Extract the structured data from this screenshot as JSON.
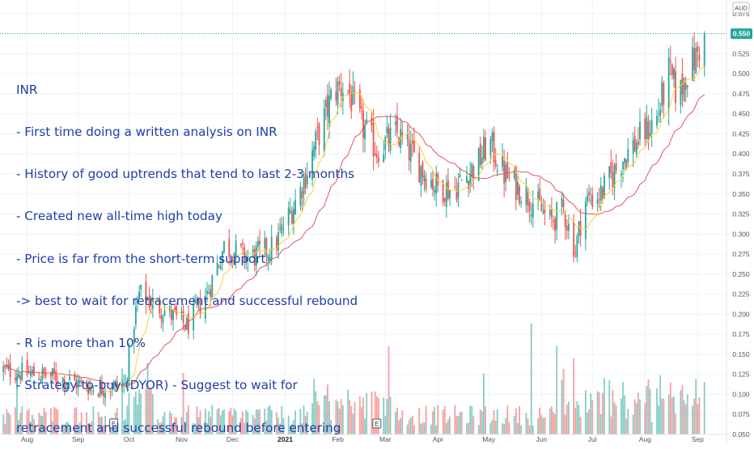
{
  "currency_badge": "AUD",
  "last_price_label": "0.550",
  "earnings_marker": "E",
  "annotation": {
    "lines": [
      "INR",
      "- First time doing a written analysis on INR",
      "- History of good uptrends that tend to last 2-3 months",
      "- Created new all-time high today",
      "- Price is far from the short-term support",
      "-> best to wait for retracement and successful rebound",
      "- R is more than 10%",
      "- Strategy-to-buy (DYOR) - Suggest to wait for",
      "retracement and successful rebound before entering"
    ]
  },
  "colors": {
    "up": "#26a69a",
    "down": "#ef5350",
    "ma_fast": "#f5d33a",
    "ma_slow": "#e05560",
    "annotation_text": "#1e3fa8",
    "price_label_bg": "#26a69a"
  },
  "chart_data": {
    "type": "candlestick",
    "title": "",
    "currency": "AUD",
    "ylim": [
      0.05,
      0.59
    ],
    "yticks": [
      0.575,
      0.55,
      0.525,
      0.5,
      0.475,
      0.45,
      0.425,
      0.4,
      0.375,
      0.35,
      0.325,
      0.3,
      0.275,
      0.25,
      0.225,
      0.2,
      0.175,
      0.15,
      0.125,
      0.1,
      0.075,
      0.05
    ],
    "ytick_labels": [
      "0.575",
      "",
      "0.525",
      "0.500",
      "0.475",
      "0.450",
      "0.425",
      "0.400",
      "0.375",
      "0.350",
      "0.325",
      "0.300",
      "0.275",
      "0.250",
      "0.225",
      "0.200",
      "0.175",
      "0.150",
      "0.125",
      "0.100",
      "0.075",
      "0.050"
    ],
    "x_labels": [
      {
        "label": "Aug",
        "day": 14,
        "bold": false
      },
      {
        "label": "Sep",
        "day": 44,
        "bold": false
      },
      {
        "label": "Oct",
        "day": 74,
        "bold": false
      },
      {
        "label": "Nov",
        "day": 105,
        "bold": false
      },
      {
        "label": "Dec",
        "day": 135,
        "bold": false
      },
      {
        "label": "2021",
        "day": 166,
        "bold": true
      },
      {
        "label": "Feb",
        "day": 197,
        "bold": false
      },
      {
        "label": "Mar",
        "day": 225,
        "bold": false
      },
      {
        "label": "Apr",
        "day": 256,
        "bold": false
      },
      {
        "label": "May",
        "day": 286,
        "bold": false
      },
      {
        "label": "Jun",
        "day": 317,
        "bold": false
      },
      {
        "label": "Jul",
        "day": 347,
        "bold": false
      },
      {
        "label": "Aug",
        "day": 378,
        "bold": false
      },
      {
        "label": "Sep",
        "day": 409,
        "bold": false
      }
    ],
    "x_range_days": [
      -2,
      426
    ],
    "earnings_days": [
      65,
      220
    ],
    "last_price": 0.55,
    "price_keypoints": [
      [
        0,
        0.13
      ],
      [
        30,
        0.122
      ],
      [
        55,
        0.107
      ],
      [
        72,
        0.112
      ],
      [
        76,
        0.18
      ],
      [
        80,
        0.225
      ],
      [
        95,
        0.205
      ],
      [
        108,
        0.185
      ],
      [
        120,
        0.225
      ],
      [
        130,
        0.285
      ],
      [
        145,
        0.27
      ],
      [
        160,
        0.285
      ],
      [
        175,
        0.355
      ],
      [
        185,
        0.42
      ],
      [
        195,
        0.48
      ],
      [
        202,
        0.485
      ],
      [
        210,
        0.44
      ],
      [
        220,
        0.405
      ],
      [
        232,
        0.425
      ],
      [
        245,
        0.385
      ],
      [
        255,
        0.36
      ],
      [
        265,
        0.355
      ],
      [
        280,
        0.39
      ],
      [
        286,
        0.415
      ],
      [
        295,
        0.375
      ],
      [
        305,
        0.355
      ],
      [
        315,
        0.335
      ],
      [
        322,
        0.315
      ],
      [
        330,
        0.33
      ],
      [
        337,
        0.28
      ],
      [
        342,
        0.34
      ],
      [
        352,
        0.35
      ],
      [
        365,
        0.395
      ],
      [
        375,
        0.42
      ],
      [
        385,
        0.445
      ],
      [
        392,
        0.5
      ],
      [
        398,
        0.47
      ],
      [
        402,
        0.5
      ],
      [
        408,
        0.52
      ],
      [
        413,
        0.55
      ]
    ],
    "volume_note": "volume bars in separate lower band, values relative (0-1)"
  }
}
